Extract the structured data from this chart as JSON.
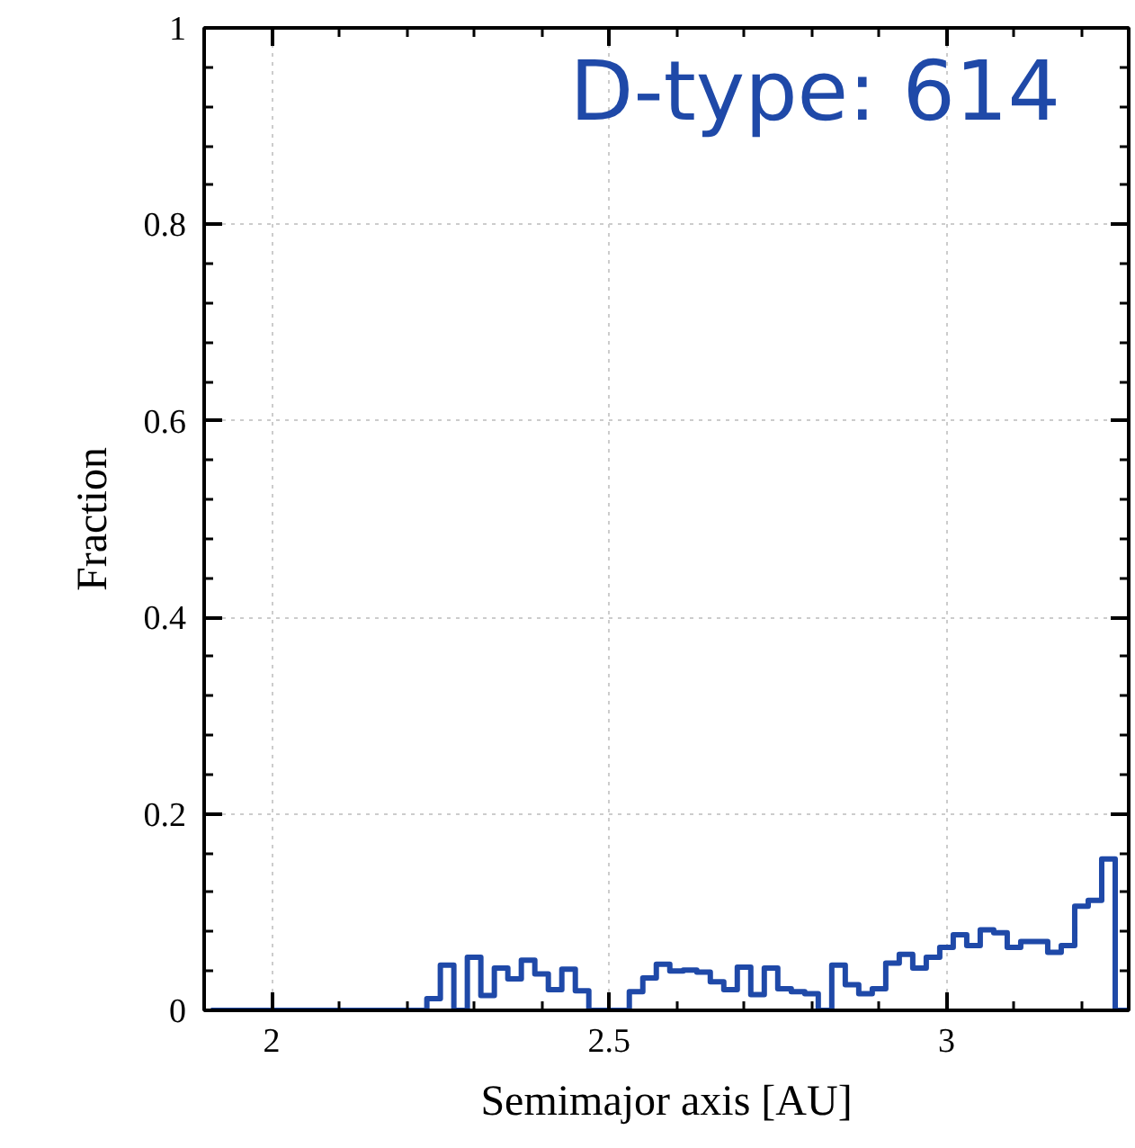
{
  "chart_data": {
    "type": "histogram",
    "xlabel": "Semimajor axis [AU]",
    "ylabel": "Fraction",
    "annotations": [
      "D-type: 614"
    ],
    "color": "#1f49a8",
    "bins": [
      1.91,
      1.93,
      1.95,
      1.97,
      1.99,
      2.01,
      2.03,
      2.05,
      2.07,
      2.09,
      2.11,
      2.13,
      2.15,
      2.17,
      2.19,
      2.21,
      2.23,
      2.25,
      2.27,
      2.29,
      2.31,
      2.33,
      2.35,
      2.37,
      2.39,
      2.41,
      2.43,
      2.45,
      2.47,
      2.49,
      2.51,
      2.53,
      2.55,
      2.57,
      2.59,
      2.61,
      2.63,
      2.65,
      2.67,
      2.69,
      2.71,
      2.73,
      2.75,
      2.77,
      2.79,
      2.81,
      2.83,
      2.85,
      2.87,
      2.89,
      2.91,
      2.93,
      2.95,
      2.97,
      2.99,
      3.01,
      3.03,
      3.05,
      3.07,
      3.09,
      3.11,
      3.13,
      3.15,
      3.17,
      3.19,
      3.21,
      3.23,
      3.25,
      3.27
    ],
    "values": [
      0,
      0,
      0,
      0,
      0,
      0,
      0,
      0,
      0,
      0,
      0,
      0,
      0,
      0,
      0,
      0,
      0.012,
      0.046,
      0,
      0.054,
      0.015,
      0.043,
      0.032,
      0.051,
      0.037,
      0.021,
      0.042,
      0.02,
      0,
      0,
      0,
      0.019,
      0.033,
      0.047,
      0.04,
      0.041,
      0.039,
      0.029,
      0.021,
      0.044,
      0.016,
      0.043,
      0.022,
      0.019,
      0.017,
      0,
      0.046,
      0.026,
      0.017,
      0.022,
      0.048,
      0.057,
      0.043,
      0.054,
      0.064,
      0.077,
      0.066,
      0.082,
      0.079,
      0.064,
      0.07,
      0.07,
      0.059,
      0.066,
      0.106,
      0.112,
      0.154,
      0
    ],
    "xlim": [
      1.9,
      3.27
    ],
    "ylim": [
      0,
      1
    ],
    "xticks": [
      2,
      2.5,
      3
    ],
    "yticks": [
      0,
      0.2,
      0.4,
      0.6,
      0.8,
      1
    ],
    "grid": true,
    "line_style": "solid"
  }
}
